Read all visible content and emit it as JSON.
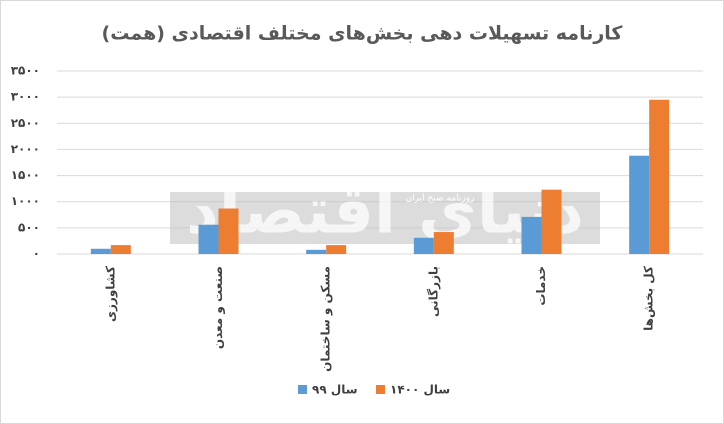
{
  "chart_data": {
    "type": "bar",
    "title": "کارنامه تسهیلات دهی بخش‌های مختلف اقتصادی (همت)",
    "categories": [
      "کشاورزی",
      "صنعت و معدن",
      "مسکن و ساختمان",
      "بازرگانی",
      "خدمات",
      "کل بخش‌ها"
    ],
    "series": [
      {
        "name": "سال ۹۹",
        "color": "#5b9bd5",
        "values": [
          100,
          560,
          80,
          310,
          710,
          1880
        ]
      },
      {
        "name": "سال ۱۴۰۰",
        "color": "#ed7d31",
        "values": [
          170,
          870,
          170,
          420,
          1230,
          2950
        ]
      }
    ],
    "ylim": [
      0,
      3500
    ],
    "yticks": [
      {
        "value": 0,
        "label": "۰"
      },
      {
        "value": 500,
        "label": "۵۰۰"
      },
      {
        "value": 1000,
        "label": "۱۰۰۰"
      },
      {
        "value": 1500,
        "label": "۱۵۰۰"
      },
      {
        "value": 2000,
        "label": "۲۰۰۰"
      },
      {
        "value": 2500,
        "label": "۲۵۰۰"
      },
      {
        "value": 3000,
        "label": "۳۰۰۰"
      },
      {
        "value": 3500,
        "label": "۳۵۰۰"
      }
    ],
    "grid": true,
    "legend": "bottom",
    "watermark": {
      "title": "دنیای اقتصاد",
      "subtitle": "روزنامه صبح ایران"
    }
  }
}
